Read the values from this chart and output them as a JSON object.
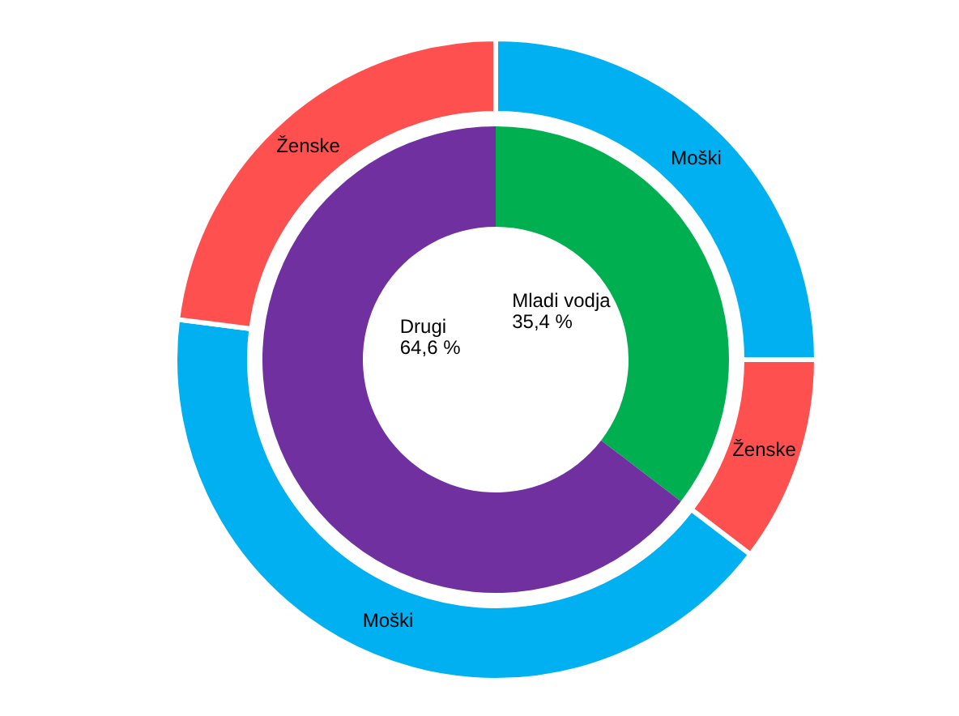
{
  "chart_data": [
    {
      "type": "donut",
      "categories": [
        "Mladi vodja",
        "Drugi"
      ],
      "values": [
        35.4,
        64.6
      ],
      "colors": [
        "#00b050",
        "#7030a0"
      ],
      "value_labels": [
        "35,4 %",
        "64,6 %"
      ]
    },
    {
      "type": "donut",
      "categories": [
        "Moški",
        "Ženske",
        "Moški",
        "Ženske"
      ],
      "values": [
        25,
        10.4,
        41.6,
        23
      ],
      "colors": [
        "#00b0f0",
        "#ff5050",
        "#00b0f0",
        "#ff5050"
      ]
    }
  ]
}
